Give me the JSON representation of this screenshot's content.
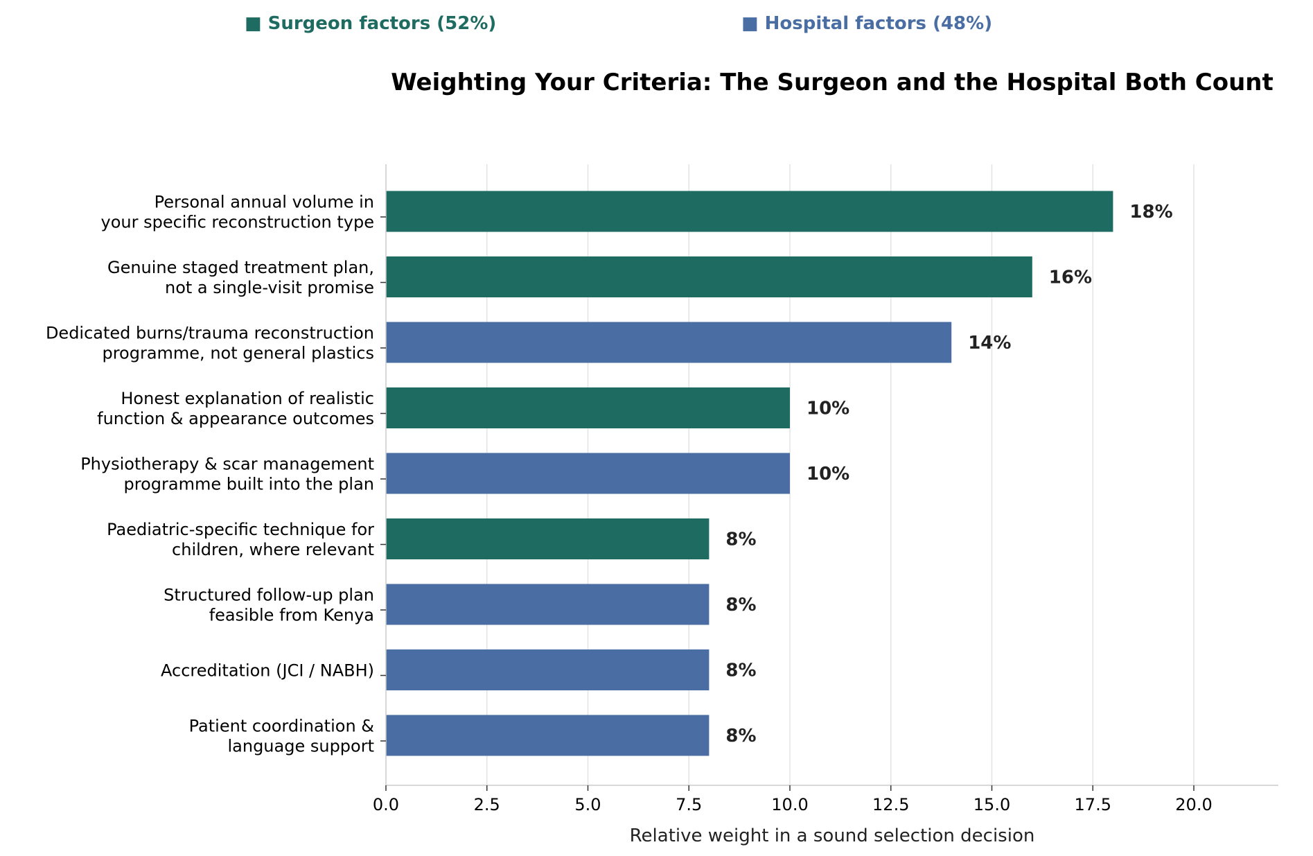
{
  "chart_data": {
    "type": "bar",
    "orientation": "horizontal",
    "title": "Weighting Your Criteria: The Surgeon and the Hospital Both Count",
    "xlabel": "Relative weight in a sound selection decision",
    "ylabel": "",
    "xlim": [
      0,
      22
    ],
    "xticks": [
      0,
      2.5,
      5,
      7.5,
      10,
      12.5,
      15,
      17.5,
      20
    ],
    "xtick_labels": [
      "0.0",
      "2.5",
      "5.0",
      "7.5",
      "10.0",
      "12.5",
      "15.0",
      "17.5",
      "20.0"
    ],
    "grid": "vertical",
    "legend_position": "top",
    "legend": [
      {
        "label": "■ Surgeon factors (52%)",
        "group": "surgeon"
      },
      {
        "label": "■ Hospital factors (48%)",
        "group": "hospital"
      }
    ],
    "colors": {
      "surgeon": "#1e6b62",
      "hospital": "#4a6ea3"
    },
    "categories": [
      [
        "Personal annual volume in",
        "your specific reconstruction type"
      ],
      [
        "Genuine staged treatment plan,",
        "not a single-visit promise"
      ],
      [
        "Dedicated burns/trauma reconstruction",
        "programme, not general plastics"
      ],
      [
        "Honest explanation of realistic",
        "function & appearance outcomes"
      ],
      [
        "Physiotherapy & scar management",
        "programme built into the plan"
      ],
      [
        "Paediatric-specific technique for",
        "children, where relevant"
      ],
      [
        "Structured follow-up plan",
        "feasible from Kenya"
      ],
      [
        "Accreditation (JCI / NABH)"
      ],
      [
        "Patient coordination &",
        "language support"
      ]
    ],
    "values": [
      18,
      16,
      14,
      10,
      10,
      8,
      8,
      8,
      8
    ],
    "groups": [
      "surgeon",
      "surgeon",
      "hospital",
      "surgeon",
      "hospital",
      "surgeon",
      "hospital",
      "hospital",
      "hospital"
    ],
    "data_labels": [
      "18%",
      "16%",
      "14%",
      "10%",
      "10%",
      "8%",
      "8%",
      "8%",
      "8%"
    ]
  }
}
